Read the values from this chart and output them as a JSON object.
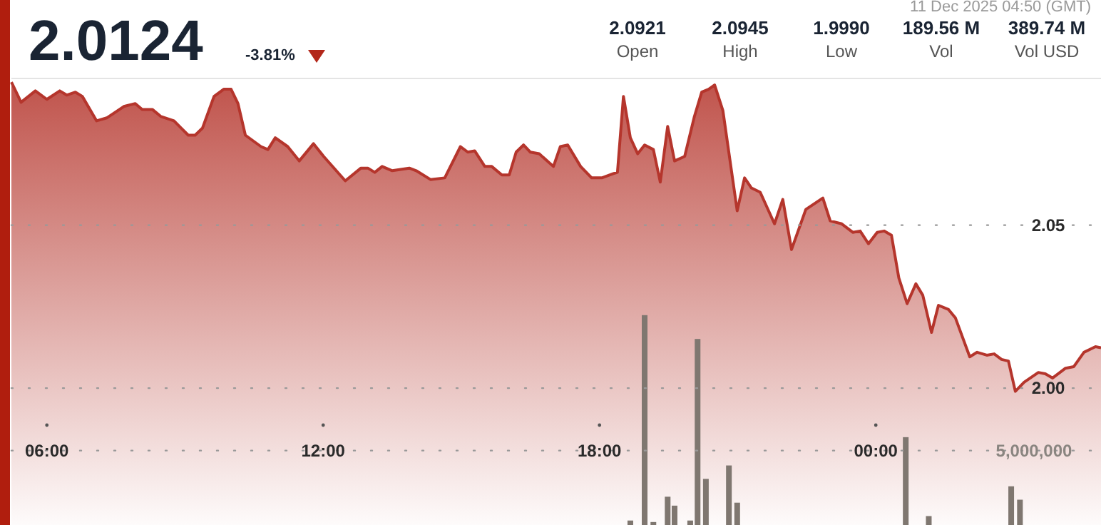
{
  "chart_data": {
    "type": "area",
    "title": "2.0124",
    "subtitle": "-3.81%",
    "annotations": [
      "11 Dec 2025 04:50 (GMT)",
      "2.0921",
      "Open",
      "2.0945",
      "High",
      "1.9990",
      "Low",
      "189.56 M",
      "Vol",
      "389.74 M",
      "Vol USD"
    ],
    "xlim": [
      5.23,
      28.89
    ],
    "xticks": [
      {
        "value": 6,
        "label": "06:00"
      },
      {
        "value": 12,
        "label": "12:00"
      },
      {
        "value": 18,
        "label": "18:00"
      },
      {
        "value": 24,
        "label": "00:00"
      }
    ],
    "ylim": [
      1.958,
      2.095
    ],
    "yticks": [
      {
        "value": 2,
        "label": "2.00"
      },
      2.05
    ],
    "y2lim": [
      0,
      30000000
    ],
    "y2ticks": [
      {
        "value": 5000000,
        "label": "5,000,000"
      }
    ],
    "grid": "y",
    "marker": "none",
    "line_style": "solid",
    "series": [
      {
        "color": "#b5352c",
        "x": [
          5.23,
          5.44,
          5.75,
          6.0,
          6.28,
          6.43,
          6.62,
          6.77,
          7.08,
          7.3,
          7.67,
          7.92,
          8.07,
          8.29,
          8.48,
          8.76,
          9.07,
          9.22,
          9.38,
          9.63,
          9.84,
          10.0,
          10.15,
          10.31,
          10.65,
          10.8,
          10.96,
          11.23,
          11.48,
          11.79,
          12.01,
          12.48,
          12.82,
          12.97,
          13.12,
          13.28,
          13.5,
          13.87,
          14.02,
          14.33,
          14.64,
          14.98,
          15.14,
          15.29,
          15.51,
          15.66,
          15.88,
          16.04,
          16.19,
          16.35,
          16.5,
          16.69,
          17.0,
          17.15,
          17.31,
          17.59,
          17.83,
          18.05,
          18.3,
          18.39,
          18.52,
          18.67,
          18.83,
          18.98,
          19.17,
          19.32,
          19.48,
          19.63,
          19.85,
          20.06,
          20.22,
          20.37,
          20.5,
          20.68,
          20.99,
          21.15,
          21.3,
          21.49,
          21.8,
          21.98,
          22.17,
          22.48,
          22.85,
          23.01,
          23.26,
          23.5,
          23.66,
          23.84,
          24.03,
          24.18,
          24.34,
          24.5,
          24.68,
          24.87,
          25.02,
          25.21,
          25.36,
          25.58,
          25.73,
          26.04,
          26.2,
          26.41,
          26.57,
          26.73,
          26.88,
          27.03,
          27.22,
          27.53,
          27.68,
          27.84,
          28.12,
          28.3,
          28.52,
          28.77,
          28.89
        ],
        "values": [
          2.0939,
          2.0877,
          2.0912,
          2.0886,
          2.0912,
          2.0899,
          2.0908,
          2.0895,
          2.082,
          2.0829,
          2.0864,
          2.0873,
          2.0855,
          2.0855,
          2.0833,
          2.082,
          2.0776,
          2.0776,
          2.0798,
          2.0895,
          2.0917,
          2.0917,
          2.0873,
          2.0776,
          2.0741,
          2.0732,
          2.0768,
          2.0741,
          2.0697,
          2.075,
          2.0711,
          2.0636,
          2.0675,
          2.0675,
          2.0662,
          2.068,
          2.0667,
          2.0675,
          2.0667,
          2.064,
          2.0645,
          2.0741,
          2.0724,
          2.0728,
          2.068,
          2.068,
          2.0654,
          2.0654,
          2.0724,
          2.0746,
          2.0724,
          2.0719,
          2.068,
          2.0741,
          2.0746,
          2.068,
          2.0645,
          2.0645,
          2.0658,
          2.0662,
          2.0895,
          2.0768,
          2.0719,
          2.0746,
          2.0732,
          2.0632,
          2.0803,
          2.0697,
          2.0711,
          2.0833,
          2.0908,
          2.0917,
          2.093,
          2.0851,
          2.0544,
          2.0645,
          2.0614,
          2.0601,
          2.0504,
          2.0579,
          2.0425,
          2.0548,
          2.0583,
          2.0513,
          2.0504,
          2.0478,
          2.0482,
          2.0443,
          2.0478,
          2.0482,
          2.0469,
          2.0338,
          2.0259,
          2.032,
          2.0285,
          2.0171,
          2.0254,
          2.0241,
          2.0215,
          2.0096,
          2.011,
          2.0101,
          2.0105,
          2.0088,
          2.0083,
          1.999,
          2.0018,
          2.0048,
          2.0044,
          2.0031,
          2.0061,
          2.0066,
          2.011,
          2.0127,
          2.0124
        ]
      },
      {
        "type": "bar",
        "axis": "y2",
        "color": "#7f7770",
        "x": [
          18.67,
          18.98,
          19.17,
          19.48,
          19.63,
          19.97,
          20.13,
          20.31,
          20.81,
          20.99,
          24.65,
          25.15,
          26.94,
          27.13
        ],
        "values": [
          300000,
          14100000,
          200000,
          1900000,
          1300000,
          300000,
          12500000,
          3100000,
          4000000,
          1500000,
          5900000,
          600000,
          2600000,
          1700000
        ]
      }
    ]
  }
}
